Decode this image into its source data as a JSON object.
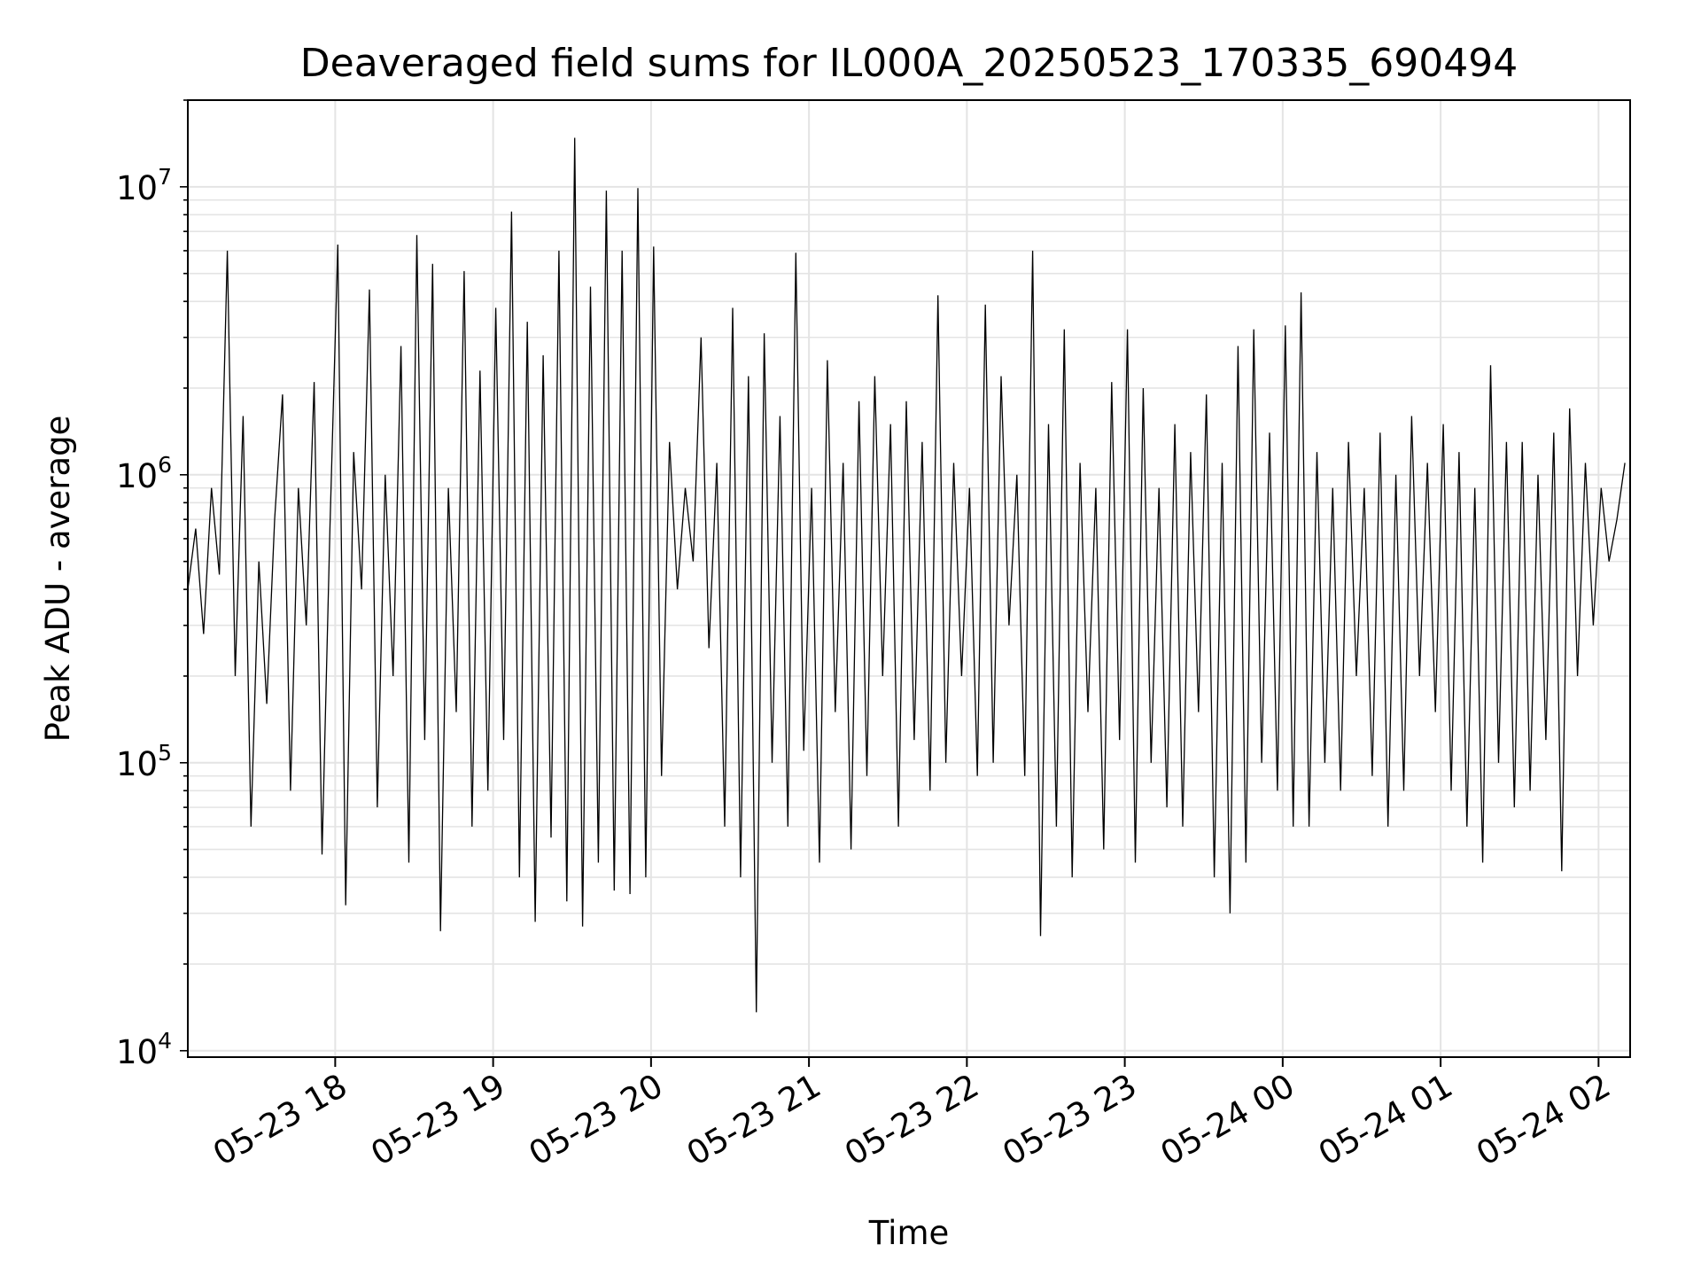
{
  "chart_data": {
    "type": "line",
    "title": "Deaveraged field sums for IL000A_20250523_170335_690494",
    "xlabel": "Time",
    "ylabel": "Peak ADU - average",
    "yscale": "log",
    "grid": true,
    "line_color": "#000000",
    "xlim": [
      "2025-05-23 17:04",
      "2025-05-24 02:12"
    ],
    "ylim": [
      9500,
      20000000
    ],
    "x_ticks": [
      {
        "value": "2025-05-23 18:00",
        "label": "05-23 18"
      },
      {
        "value": "2025-05-23 19:00",
        "label": "05-23 19"
      },
      {
        "value": "2025-05-23 20:00",
        "label": "05-23 20"
      },
      {
        "value": "2025-05-23 21:00",
        "label": "05-23 21"
      },
      {
        "value": "2025-05-23 22:00",
        "label": "05-23 22"
      },
      {
        "value": "2025-05-23 23:00",
        "label": "05-23 23"
      },
      {
        "value": "2025-05-24 00:00",
        "label": "05-24 00"
      },
      {
        "value": "2025-05-24 01:00",
        "label": "05-24 01"
      },
      {
        "value": "2025-05-24 02:00",
        "label": "05-24 02"
      }
    ],
    "y_ticks": [
      {
        "value": 10000,
        "base": "10",
        "exp": "4"
      },
      {
        "value": 100000,
        "base": "10",
        "exp": "5"
      },
      {
        "value": 1000000,
        "base": "10",
        "exp": "6"
      },
      {
        "value": 10000000,
        "base": "10",
        "exp": "7"
      }
    ],
    "series": [
      {
        "x": [
          "2025-05-23 17:04",
          "2025-05-23 17:07",
          "2025-05-23 17:10",
          "2025-05-23 17:13",
          "2025-05-23 17:16",
          "2025-05-23 17:19",
          "2025-05-23 17:22",
          "2025-05-23 17:25",
          "2025-05-23 17:28",
          "2025-05-23 17:31",
          "2025-05-23 17:34",
          "2025-05-23 17:37",
          "2025-05-23 17:40",
          "2025-05-23 17:43",
          "2025-05-23 17:46",
          "2025-05-23 17:49",
          "2025-05-23 17:52",
          "2025-05-23 17:55",
          "2025-05-23 17:58",
          "2025-05-23 18:01",
          "2025-05-23 18:04",
          "2025-05-23 18:07",
          "2025-05-23 18:10",
          "2025-05-23 18:13",
          "2025-05-23 18:16",
          "2025-05-23 18:19",
          "2025-05-23 18:22",
          "2025-05-23 18:25",
          "2025-05-23 18:28",
          "2025-05-23 18:31",
          "2025-05-23 18:34",
          "2025-05-23 18:37",
          "2025-05-23 18:40",
          "2025-05-23 18:43",
          "2025-05-23 18:46",
          "2025-05-23 18:49",
          "2025-05-23 18:52",
          "2025-05-23 18:55",
          "2025-05-23 18:58",
          "2025-05-23 19:01",
          "2025-05-23 19:04",
          "2025-05-23 19:07",
          "2025-05-23 19:10",
          "2025-05-23 19:13",
          "2025-05-23 19:16",
          "2025-05-23 19:19",
          "2025-05-23 19:22",
          "2025-05-23 19:25",
          "2025-05-23 19:28",
          "2025-05-23 19:31",
          "2025-05-23 19:34",
          "2025-05-23 19:37",
          "2025-05-23 19:40",
          "2025-05-23 19:43",
          "2025-05-23 19:46",
          "2025-05-23 19:49",
          "2025-05-23 19:52",
          "2025-05-23 19:55",
          "2025-05-23 19:58",
          "2025-05-23 20:01",
          "2025-05-23 20:04",
          "2025-05-23 20:07",
          "2025-05-23 20:10",
          "2025-05-23 20:13",
          "2025-05-23 20:16",
          "2025-05-23 20:19",
          "2025-05-23 20:22",
          "2025-05-23 20:25",
          "2025-05-23 20:28",
          "2025-05-23 20:31",
          "2025-05-23 20:34",
          "2025-05-23 20:37",
          "2025-05-23 20:40",
          "2025-05-23 20:43",
          "2025-05-23 20:46",
          "2025-05-23 20:49",
          "2025-05-23 20:52",
          "2025-05-23 20:55",
          "2025-05-23 20:58",
          "2025-05-23 21:01",
          "2025-05-23 21:04",
          "2025-05-23 21:07",
          "2025-05-23 21:10",
          "2025-05-23 21:13",
          "2025-05-23 21:16",
          "2025-05-23 21:19",
          "2025-05-23 21:22",
          "2025-05-23 21:25",
          "2025-05-23 21:28",
          "2025-05-23 21:31",
          "2025-05-23 21:34",
          "2025-05-23 21:37",
          "2025-05-23 21:40",
          "2025-05-23 21:43",
          "2025-05-23 21:46",
          "2025-05-23 21:49",
          "2025-05-23 21:52",
          "2025-05-23 21:55",
          "2025-05-23 21:58",
          "2025-05-23 22:01",
          "2025-05-23 22:04",
          "2025-05-23 22:07",
          "2025-05-23 22:10",
          "2025-05-23 22:13",
          "2025-05-23 22:16",
          "2025-05-23 22:19",
          "2025-05-23 22:22",
          "2025-05-23 22:25",
          "2025-05-23 22:28",
          "2025-05-23 22:31",
          "2025-05-23 22:34",
          "2025-05-23 22:37",
          "2025-05-23 22:40",
          "2025-05-23 22:43",
          "2025-05-23 22:46",
          "2025-05-23 22:49",
          "2025-05-23 22:52",
          "2025-05-23 22:55",
          "2025-05-23 22:58",
          "2025-05-23 23:01",
          "2025-05-23 23:04",
          "2025-05-23 23:07",
          "2025-05-23 23:10",
          "2025-05-23 23:13",
          "2025-05-23 23:16",
          "2025-05-23 23:19",
          "2025-05-23 23:22",
          "2025-05-23 23:25",
          "2025-05-23 23:28",
          "2025-05-23 23:31",
          "2025-05-23 23:34",
          "2025-05-23 23:37",
          "2025-05-23 23:40",
          "2025-05-23 23:43",
          "2025-05-23 23:46",
          "2025-05-23 23:49",
          "2025-05-23 23:52",
          "2025-05-23 23:55",
          "2025-05-23 23:58",
          "2025-05-24 00:01",
          "2025-05-24 00:04",
          "2025-05-24 00:07",
          "2025-05-24 00:10",
          "2025-05-24 00:13",
          "2025-05-24 00:16",
          "2025-05-24 00:19",
          "2025-05-24 00:22",
          "2025-05-24 00:25",
          "2025-05-24 00:28",
          "2025-05-24 00:31",
          "2025-05-24 00:34",
          "2025-05-24 00:37",
          "2025-05-24 00:40",
          "2025-05-24 00:43",
          "2025-05-24 00:46",
          "2025-05-24 00:49",
          "2025-05-24 00:52",
          "2025-05-24 00:55",
          "2025-05-24 00:58",
          "2025-05-24 01:01",
          "2025-05-24 01:04",
          "2025-05-24 01:07",
          "2025-05-24 01:10",
          "2025-05-24 01:13",
          "2025-05-24 01:16",
          "2025-05-24 01:19",
          "2025-05-24 01:22",
          "2025-05-24 01:25",
          "2025-05-24 01:28",
          "2025-05-24 01:31",
          "2025-05-24 01:34",
          "2025-05-24 01:37",
          "2025-05-24 01:40",
          "2025-05-24 01:43",
          "2025-05-24 01:46",
          "2025-05-24 01:49",
          "2025-05-24 01:52",
          "2025-05-24 01:55",
          "2025-05-24 01:58",
          "2025-05-24 02:01",
          "2025-05-24 02:04",
          "2025-05-24 02:07",
          "2025-05-24 02:10"
        ],
        "values": [
          400000,
          650000,
          280000,
          900000,
          450000,
          6000000,
          200000,
          1600000,
          60000,
          500000,
          160000,
          700000,
          1900000,
          80000,
          900000,
          300000,
          2100000,
          48000,
          650000,
          6300000,
          32000,
          1200000,
          400000,
          4400000,
          70000,
          1000000,
          200000,
          2800000,
          45000,
          6800000,
          120000,
          5400000,
          26000,
          900000,
          150000,
          5100000,
          60000,
          2300000,
          80000,
          3800000,
          120000,
          8200000,
          40000,
          3400000,
          28000,
          2600000,
          55000,
          6000000,
          33000,
          14800000,
          27000,
          4500000,
          45000,
          9700000,
          36000,
          6000000,
          35000,
          9900000,
          40000,
          6200000,
          90000,
          1300000,
          400000,
          900000,
          500000,
          3000000,
          250000,
          1100000,
          60000,
          3800000,
          40000,
          2200000,
          13600,
          3100000,
          100000,
          1600000,
          60000,
          5900000,
          110000,
          900000,
          45000,
          2500000,
          150000,
          1100000,
          50000,
          1800000,
          90000,
          2200000,
          200000,
          1500000,
          60000,
          1800000,
          120000,
          1300000,
          80000,
          4200000,
          100000,
          1100000,
          200000,
          900000,
          90000,
          3900000,
          100000,
          2200000,
          300000,
          1000000,
          90000,
          6000000,
          25000,
          1500000,
          60000,
          3200000,
          40000,
          1100000,
          150000,
          900000,
          50000,
          2100000,
          120000,
          3200000,
          45000,
          2000000,
          100000,
          900000,
          70000,
          1500000,
          60000,
          1200000,
          150000,
          1900000,
          40000,
          1100000,
          30000,
          2800000,
          45000,
          3200000,
          100000,
          1400000,
          80000,
          3300000,
          60000,
          4300000,
          60000,
          1200000,
          100000,
          900000,
          80000,
          1300000,
          200000,
          900000,
          90000,
          1400000,
          60000,
          1000000,
          80000,
          1600000,
          200000,
          1100000,
          150000,
          1500000,
          80000,
          1200000,
          60000,
          900000,
          45000,
          2400000,
          100000,
          1300000,
          70000,
          1300000,
          80000,
          1000000,
          120000,
          1400000,
          42000,
          1700000,
          200000,
          1100000,
          300000,
          900000,
          500000,
          700000,
          1100000
        ]
      }
    ]
  }
}
